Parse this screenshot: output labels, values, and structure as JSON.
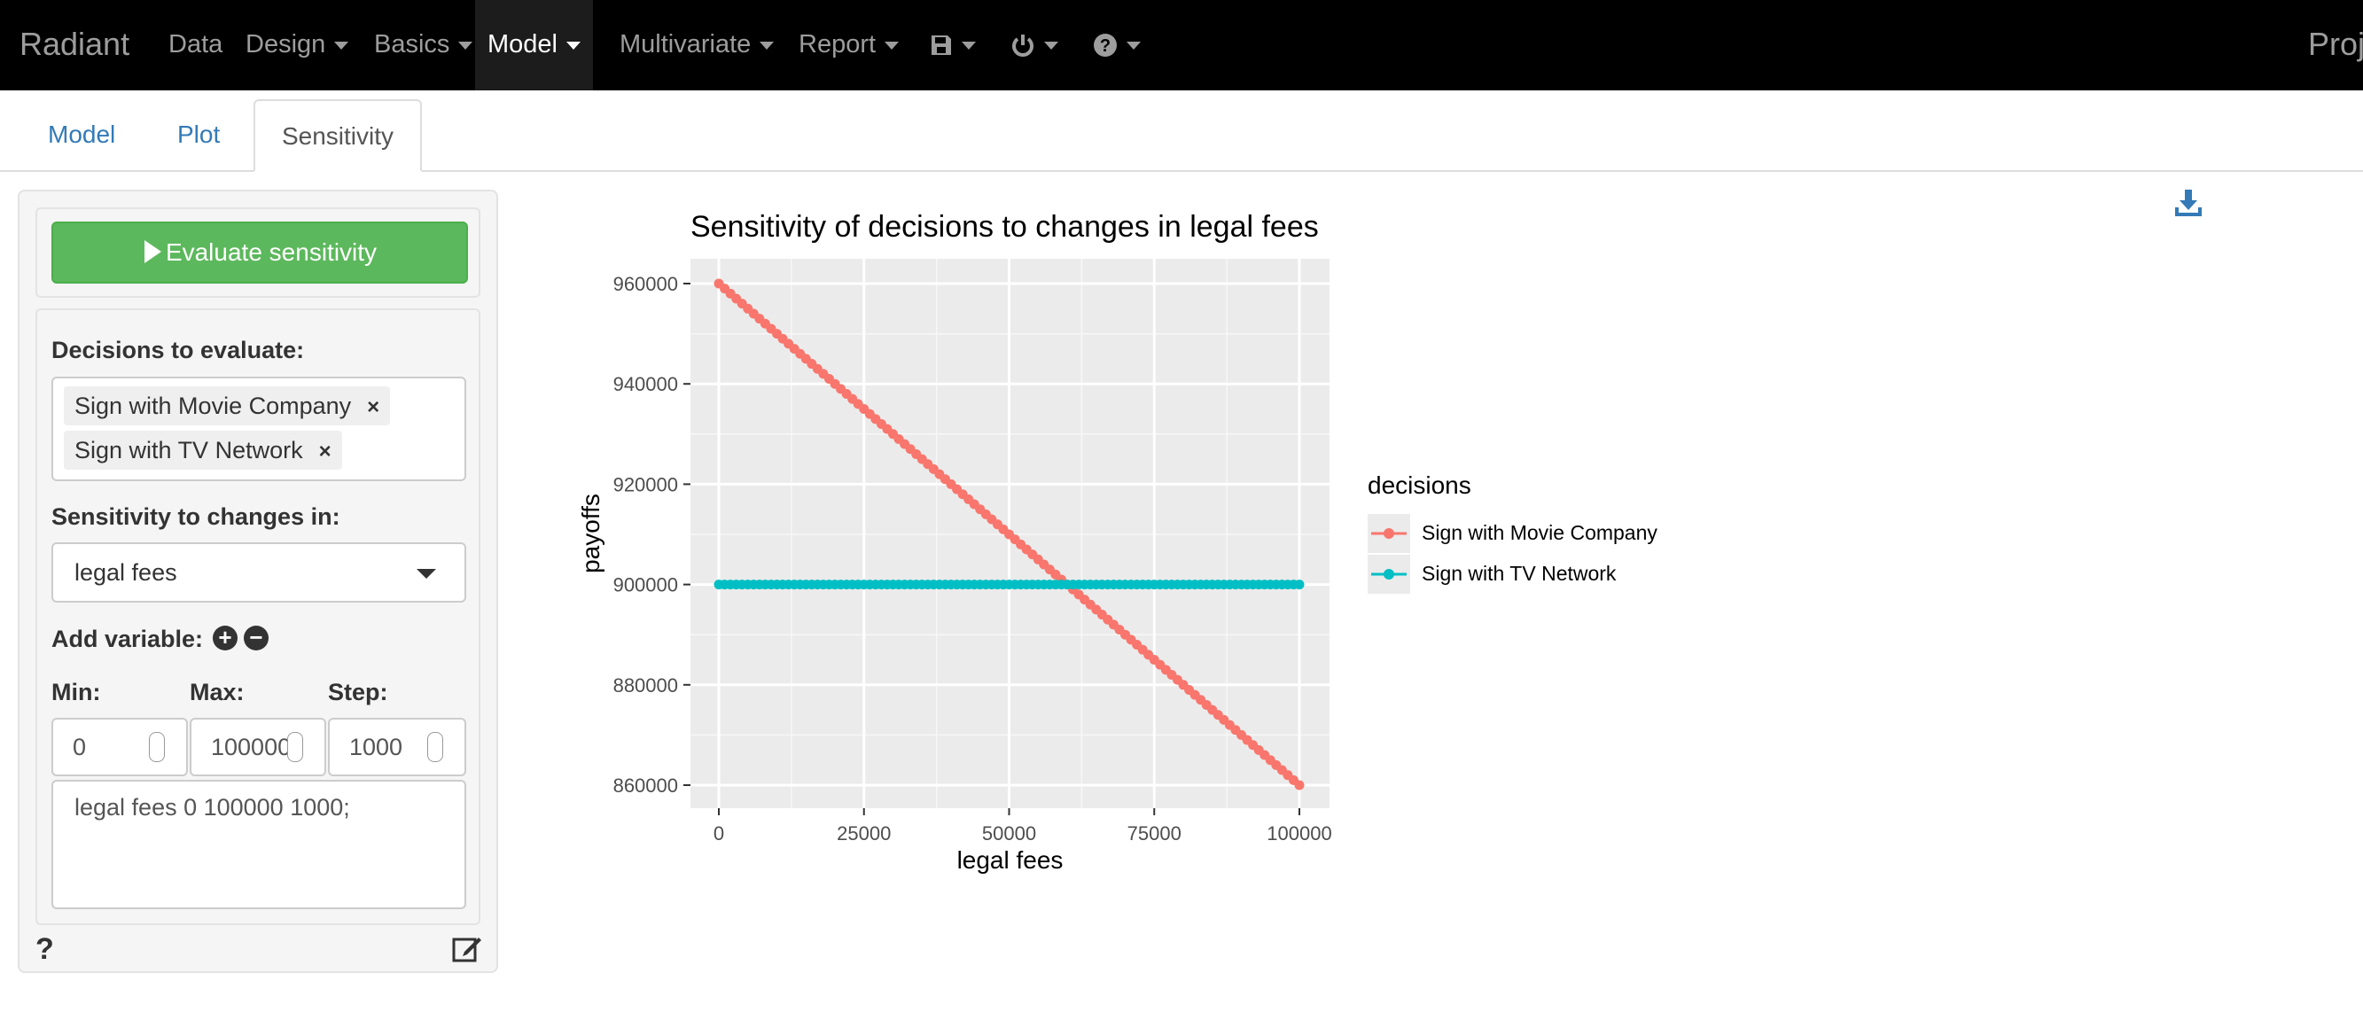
{
  "navbar": {
    "brand": "Radiant",
    "items": [
      "Data",
      "Design",
      "Basics",
      "Model",
      "Multivariate",
      "Report"
    ],
    "active": "Model",
    "right_text": "Proj"
  },
  "tabs": [
    "Model",
    "Plot",
    "Sensitivity"
  ],
  "active_tab": "Sensitivity",
  "sidebar": {
    "evaluate_button": "Evaluate sensitivity",
    "decisions_label": "Decisions to evaluate:",
    "decisions": [
      "Sign with Movie Company",
      "Sign with TV Network"
    ],
    "sensitivity_label": "Sensitivity to changes in:",
    "sensitivity_value": "legal fees",
    "add_variable_label": "Add variable:",
    "min_label": "Min:",
    "max_label": "Max:",
    "step_label": "Step:",
    "min_value": "0",
    "max_value": "100000",
    "step_value": "1000",
    "spec_text": "legal fees 0 100000 1000;"
  },
  "icons": {
    "save": "save-icon",
    "power": "power-icon",
    "help": "question-icon",
    "download": "download-icon",
    "edit": "edit-icon",
    "add": "plus-circle-icon",
    "remove": "minus-circle-icon"
  },
  "colors": {
    "movie": "#F8766D",
    "tv": "#00BFC4",
    "evaluate_button": "#5cb85c",
    "panel_bg": "#ebebeb"
  },
  "chart_data": {
    "type": "line",
    "title": "Sensitivity of decisions to changes in legal fees",
    "xlabel": "legal fees",
    "ylabel": "payoffs",
    "xlim": [
      0,
      100000
    ],
    "ylim": [
      860000,
      960000
    ],
    "x_ticks": [
      "0",
      "25000",
      "50000",
      "75000",
      "100000"
    ],
    "y_ticks": [
      "860000",
      "880000",
      "900000",
      "920000",
      "940000",
      "960000"
    ],
    "x": {
      "start": 0,
      "end": 100000,
      "step": 1000
    },
    "series": [
      {
        "name": "Sign with Movie Company",
        "start_value": 960000,
        "end_value": 860000,
        "color": "#F8766D"
      },
      {
        "name": "Sign with TV Network",
        "start_value": 900000,
        "end_value": 900000,
        "color": "#00BFC4"
      }
    ],
    "legend_title": "decisions",
    "legend_position": "right",
    "grid": true
  }
}
